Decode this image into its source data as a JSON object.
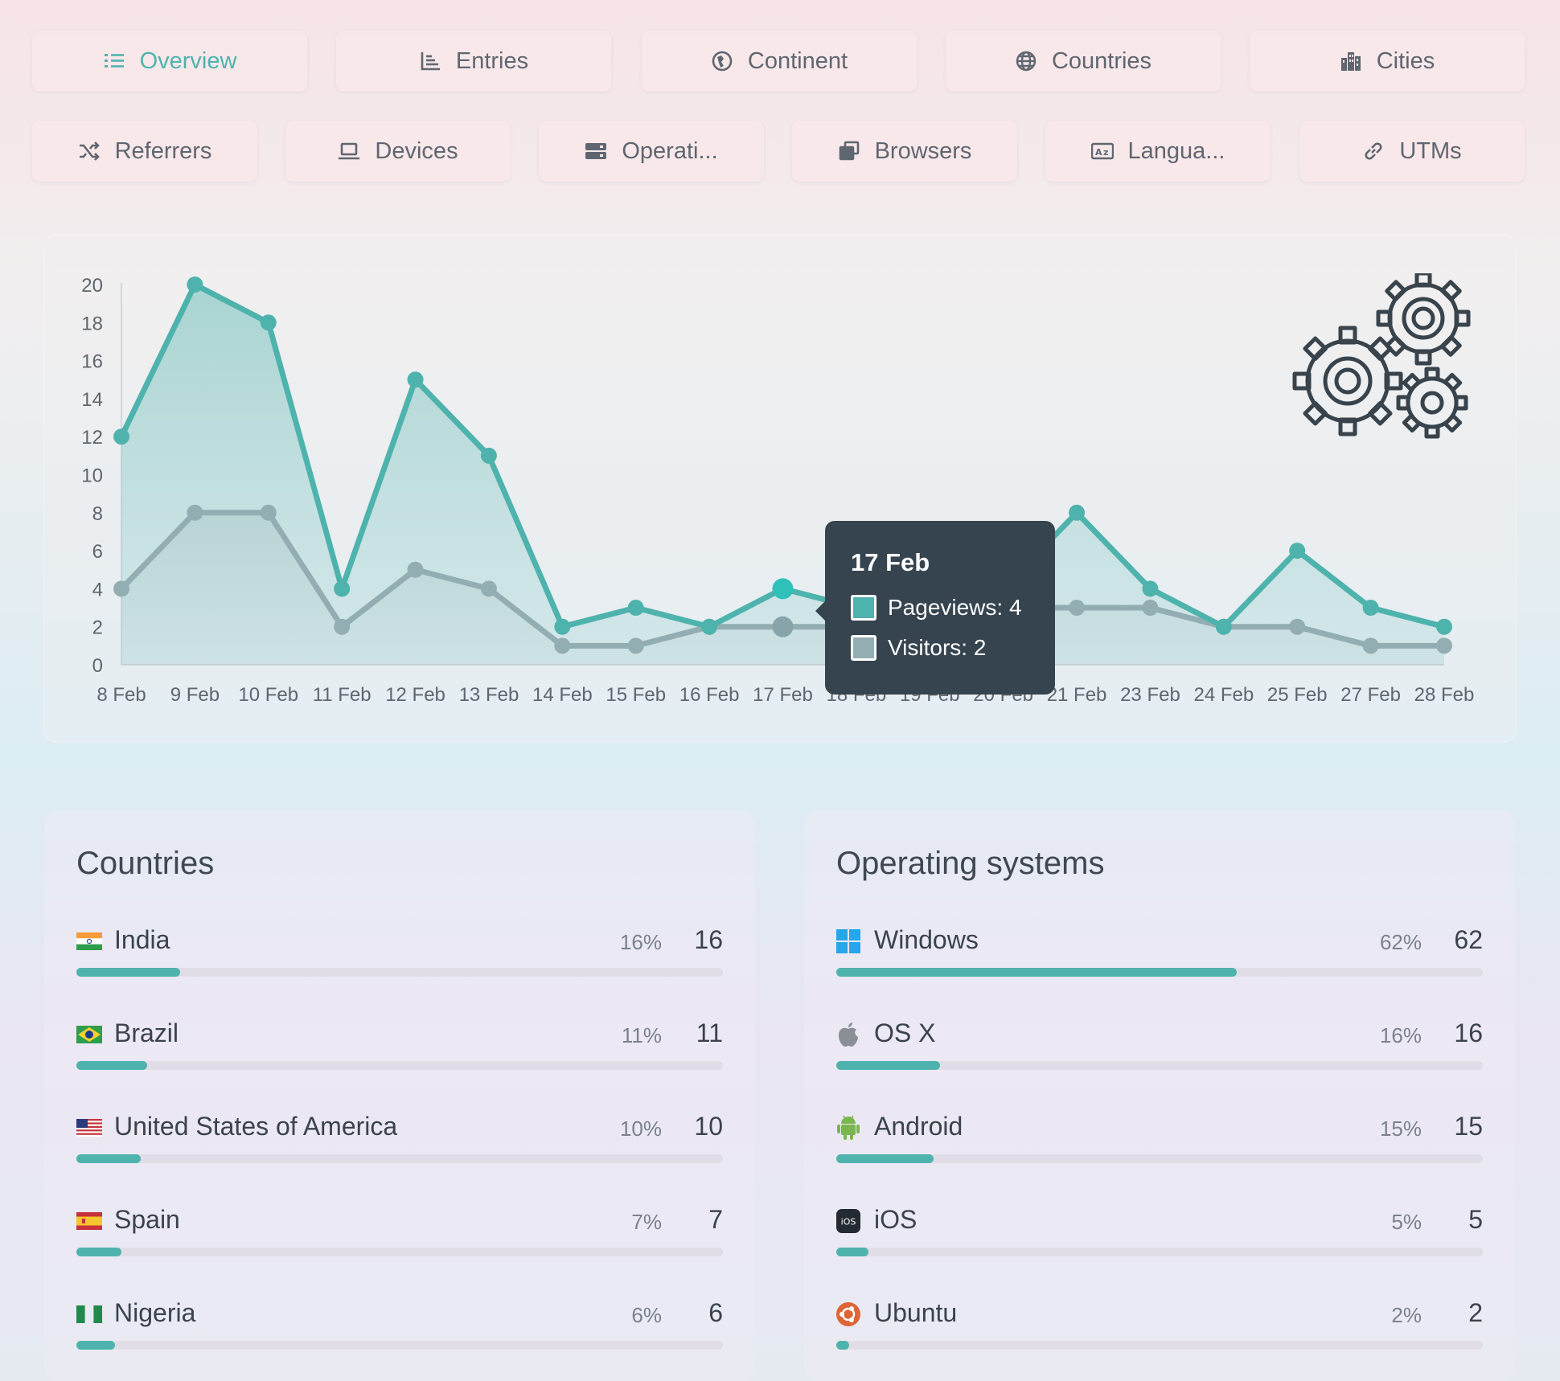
{
  "tabs_row1": [
    {
      "label": "Overview",
      "icon": "list-icon",
      "active": true
    },
    {
      "label": "Entries",
      "icon": "bar-chart-icon",
      "active": false
    },
    {
      "label": "Continent",
      "icon": "globe-africa-icon",
      "active": false
    },
    {
      "label": "Countries",
      "icon": "globe-icon",
      "active": false
    },
    {
      "label": "Cities",
      "icon": "city-icon",
      "active": false
    }
  ],
  "tabs_row2": [
    {
      "label": "Referrers",
      "icon": "shuffle-icon"
    },
    {
      "label": "Devices",
      "icon": "laptop-icon"
    },
    {
      "label": "Operati...",
      "icon": "server-icon"
    },
    {
      "label": "Browsers",
      "icon": "windows-stack-icon"
    },
    {
      "label": "Langua...",
      "icon": "language-icon"
    },
    {
      "label": "UTMs",
      "icon": "link-icon"
    }
  ],
  "chart_data": {
    "type": "area",
    "x": [
      "8 Feb",
      "9 Feb",
      "10 Feb",
      "11 Feb",
      "12 Feb",
      "13 Feb",
      "14 Feb",
      "15 Feb",
      "16 Feb",
      "17 Feb",
      "18 Feb",
      "19 Feb",
      "20 Feb",
      "21 Feb",
      "23 Feb",
      "24 Feb",
      "25 Feb",
      "27 Feb",
      "28 Feb"
    ],
    "series": [
      {
        "name": "Pageviews",
        "values": [
          12,
          20,
          18,
          4,
          15,
          11,
          2,
          3,
          2,
          4,
          3,
          3,
          4,
          8,
          4,
          2,
          6,
          3,
          2
        ]
      },
      {
        "name": "Visitors",
        "values": [
          4,
          8,
          8,
          2,
          5,
          4,
          1,
          1,
          2,
          2,
          2,
          2,
          3,
          3,
          3,
          2,
          2,
          1,
          1
        ]
      }
    ],
    "ylim": [
      0,
      20
    ],
    "yticks": [
      0,
      2,
      4,
      6,
      8,
      10,
      12,
      14,
      16,
      18,
      20
    ],
    "colors": {
      "pageviews": "#4fb3ad",
      "visitors": "#93aeb3"
    },
    "grid": false,
    "tooltip": {
      "title": "17 Feb",
      "pageviews": "Pageviews: 4",
      "visitors": "Visitors: 2"
    }
  },
  "countries": {
    "title": "Countries",
    "items": [
      {
        "name": "India",
        "pct": "16%",
        "count": "16",
        "fraction": 0.16,
        "flag": "india-flag-icon"
      },
      {
        "name": "Brazil",
        "pct": "11%",
        "count": "11",
        "fraction": 0.11,
        "flag": "brazil-flag-icon"
      },
      {
        "name": "United States of America",
        "pct": "10%",
        "count": "10",
        "fraction": 0.1,
        "flag": "usa-flag-icon"
      },
      {
        "name": "Spain",
        "pct": "7%",
        "count": "7",
        "fraction": 0.07,
        "flag": "spain-flag-icon"
      },
      {
        "name": "Nigeria",
        "pct": "6%",
        "count": "6",
        "fraction": 0.06,
        "flag": "nigeria-flag-icon"
      }
    ]
  },
  "os": {
    "title": "Operating systems",
    "items": [
      {
        "name": "Windows",
        "pct": "62%",
        "count": "62",
        "fraction": 0.62,
        "icon": "windows-icon"
      },
      {
        "name": "OS X",
        "pct": "16%",
        "count": "16",
        "fraction": 0.16,
        "icon": "apple-icon"
      },
      {
        "name": "Android",
        "pct": "15%",
        "count": "15",
        "fraction": 0.15,
        "icon": "android-icon"
      },
      {
        "name": "iOS",
        "pct": "5%",
        "count": "5",
        "fraction": 0.05,
        "icon": "ios-icon"
      },
      {
        "name": "Ubuntu",
        "pct": "2%",
        "count": "2",
        "fraction": 0.02,
        "icon": "ubuntu-icon"
      }
    ]
  },
  "accent": "#4fb3ad"
}
